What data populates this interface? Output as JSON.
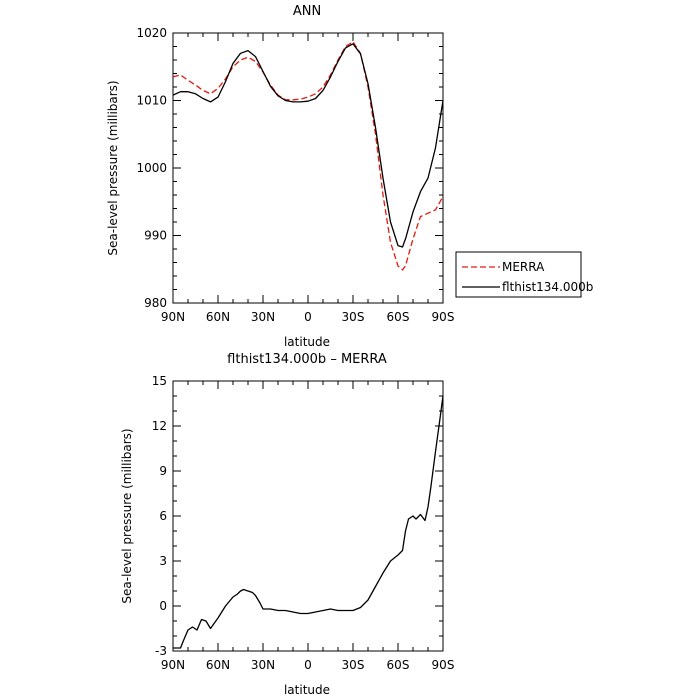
{
  "chart_data": [
    {
      "type": "line",
      "title": "ANN",
      "xlabel": "latitude",
      "ylabel": "Sea-level pressure (millibars)",
      "xlim": [
        -90,
        90
      ],
      "ylim": [
        980,
        1020
      ],
      "x_tick_values": [
        -90,
        -60,
        -30,
        0,
        30,
        60,
        90
      ],
      "x_tick_labels": [
        "90N",
        "60N",
        "30N",
        "0",
        "30S",
        "60S",
        "90S"
      ],
      "y_ticks": [
        980,
        990,
        1000,
        1010,
        1020
      ],
      "x": [
        -90,
        -85,
        -80,
        -75,
        -70,
        -65,
        -60,
        -55,
        -50,
        -45,
        -40,
        -35,
        -30,
        -25,
        -20,
        -15,
        -10,
        -5,
        0,
        5,
        10,
        15,
        20,
        25,
        30,
        35,
        40,
        45,
        50,
        55,
        60,
        63,
        65,
        70,
        75,
        80,
        85,
        90
      ],
      "series": [
        {
          "name": "MERRA",
          "color": "#e8190e",
          "dash": "dashed",
          "values": [
            1013.5,
            1013.8,
            1013.0,
            1012.3,
            1011.5,
            1011.0,
            1011.8,
            1013.2,
            1015.0,
            1016.0,
            1016.4,
            1015.8,
            1014.2,
            1012.3,
            1010.8,
            1010.1,
            1010.1,
            1010.2,
            1010.5,
            1011.0,
            1012.0,
            1013.8,
            1016.0,
            1018.0,
            1018.7,
            1017.0,
            1012.0,
            1005.0,
            996.0,
            989.0,
            985.5,
            984.9,
            985.5,
            989.5,
            992.8,
            993.3,
            993.8,
            995.8
          ]
        },
        {
          "name": "flthist134.000b",
          "color": "#000000",
          "dash": "solid",
          "values": [
            1010.8,
            1011.3,
            1011.3,
            1011.0,
            1010.3,
            1009.8,
            1010.5,
            1012.8,
            1015.5,
            1017.0,
            1017.4,
            1016.5,
            1014.3,
            1012.1,
            1010.7,
            1010.0,
            1009.8,
            1009.8,
            1009.9,
            1010.3,
            1011.5,
            1013.5,
            1015.8,
            1017.8,
            1018.4,
            1016.9,
            1012.5,
            1006.0,
            998.5,
            992.0,
            988.5,
            988.3,
            989.5,
            993.5,
            996.5,
            998.5,
            1003.0,
            1010.0
          ]
        }
      ],
      "legend": {
        "placement": "right",
        "entries": [
          "MERRA",
          "flthist134.000b"
        ]
      },
      "grid": false
    },
    {
      "type": "line",
      "title": "flthist134.000b – MERRA",
      "xlabel": "latitude",
      "ylabel": "Sea-level pressure (millibars)",
      "xlim": [
        -90,
        90
      ],
      "ylim": [
        -3,
        15
      ],
      "x_tick_values": [
        -90,
        -60,
        -30,
        0,
        30,
        60,
        90
      ],
      "x_tick_labels": [
        "90N",
        "60N",
        "30N",
        "0",
        "30S",
        "60S",
        "90S"
      ],
      "y_ticks": [
        -3,
        0,
        3,
        6,
        9,
        12,
        15
      ],
      "x": [
        -90,
        -85,
        -83,
        -80,
        -77,
        -74,
        -71,
        -68,
        -65,
        -60,
        -55,
        -50,
        -47,
        -45,
        -43,
        -40,
        -37,
        -35,
        -32,
        -30,
        -25,
        -20,
        -15,
        -10,
        -5,
        0,
        5,
        10,
        15,
        20,
        25,
        30,
        35,
        40,
        45,
        50,
        55,
        60,
        63,
        65,
        67,
        70,
        72,
        75,
        78,
        80,
        82,
        85,
        88,
        90
      ],
      "series": [
        {
          "name": "",
          "color": "#000000",
          "dash": "solid",
          "values": [
            -2.8,
            -2.8,
            -2.3,
            -1.6,
            -1.4,
            -1.6,
            -0.9,
            -1.0,
            -1.5,
            -0.8,
            0.0,
            0.6,
            0.8,
            1.0,
            1.1,
            1.0,
            0.9,
            0.7,
            0.2,
            -0.2,
            -0.2,
            -0.3,
            -0.3,
            -0.4,
            -0.5,
            -0.5,
            -0.4,
            -0.3,
            -0.2,
            -0.3,
            -0.3,
            -0.3,
            -0.1,
            0.4,
            1.3,
            2.2,
            3.0,
            3.4,
            3.7,
            5.0,
            5.8,
            6.0,
            5.8,
            6.1,
            5.7,
            6.6,
            8.0,
            10.3,
            12.5,
            14.0
          ]
        }
      ],
      "legend": null,
      "grid": false
    }
  ]
}
